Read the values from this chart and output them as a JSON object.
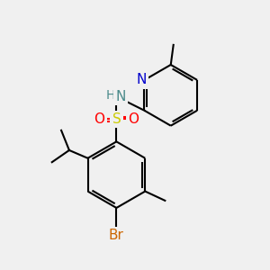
{
  "bg_color": "#f0f0f0",
  "bond_color": "#000000",
  "bond_width": 1.5,
  "N_blue": "#0000cc",
  "NH_teal": "#4a8a8a",
  "S_yellow": "#cccc00",
  "O_red": "#ff0000",
  "Br_orange": "#cc6600",
  "C_black": "#000000",
  "xlim": [
    0,
    10
  ],
  "ylim": [
    0,
    10
  ]
}
